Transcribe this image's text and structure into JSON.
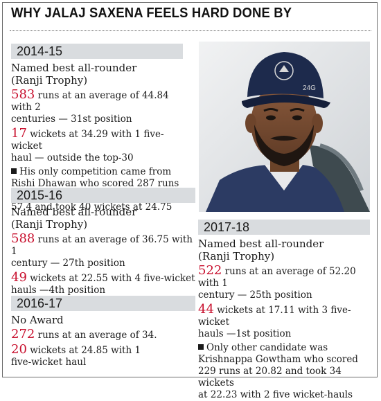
{
  "headline": "WHY JALAJ SAXENA FEELS HARD DONE BY",
  "photo": {
    "cap_text": "24G"
  },
  "seasons": [
    {
      "year": "2014-15",
      "award": [
        "Named best all-rounder",
        "(Ranji Trophy)"
      ],
      "runs": {
        "num": "583",
        "text": [
          "runs at an average of 44.84 with 2",
          "centuries — 31st position"
        ]
      },
      "wickets": {
        "num": "17",
        "text": [
          "wickets at 34.29 with 1 five-wicket",
          "haul — outside the top-30"
        ]
      },
      "note": [
        "His only competition came from",
        "Rishi Dhawan who scored 287 runs at",
        "57.4 and took 40 wickets at 24.75"
      ]
    },
    {
      "year": "2015-16",
      "award": [
        "Named best all-rounder",
        "(Ranji Trophy)"
      ],
      "runs": {
        "num": "588",
        "text": [
          "runs at an average of 36.75 with 1",
          "century — 27th position"
        ]
      },
      "wickets": {
        "num": "49",
        "text": [
          "wickets at 22.55 with 4 five-wicket",
          "hauls —4th position"
        ]
      }
    },
    {
      "year": "2016-17",
      "award": [
        "No Award"
      ],
      "runs": {
        "num": "272",
        "text": [
          "runs at an average of 34."
        ]
      },
      "wickets": {
        "num": "20",
        "text": [
          "wickets at 24.85 with 1",
          "five-wicket haul"
        ]
      }
    },
    {
      "year": "2017-18",
      "award": [
        "Named best all-rounder",
        "(Ranji Trophy)"
      ],
      "runs": {
        "num": "522",
        "text": [
          "runs at an average of 52.20 with 1",
          "century — 25th position"
        ]
      },
      "wickets": {
        "num": "44",
        "text": [
          "wickets at 17.11 with 3 five-wicket",
          "hauls —1st position"
        ]
      },
      "note": [
        "Only other candidate was",
        "Krishnappa Gowtham who scored",
        "229 runs at 20.82 and took 34 wickets",
        "at 22.23 with 2 five wicket-hauls"
      ]
    }
  ]
}
